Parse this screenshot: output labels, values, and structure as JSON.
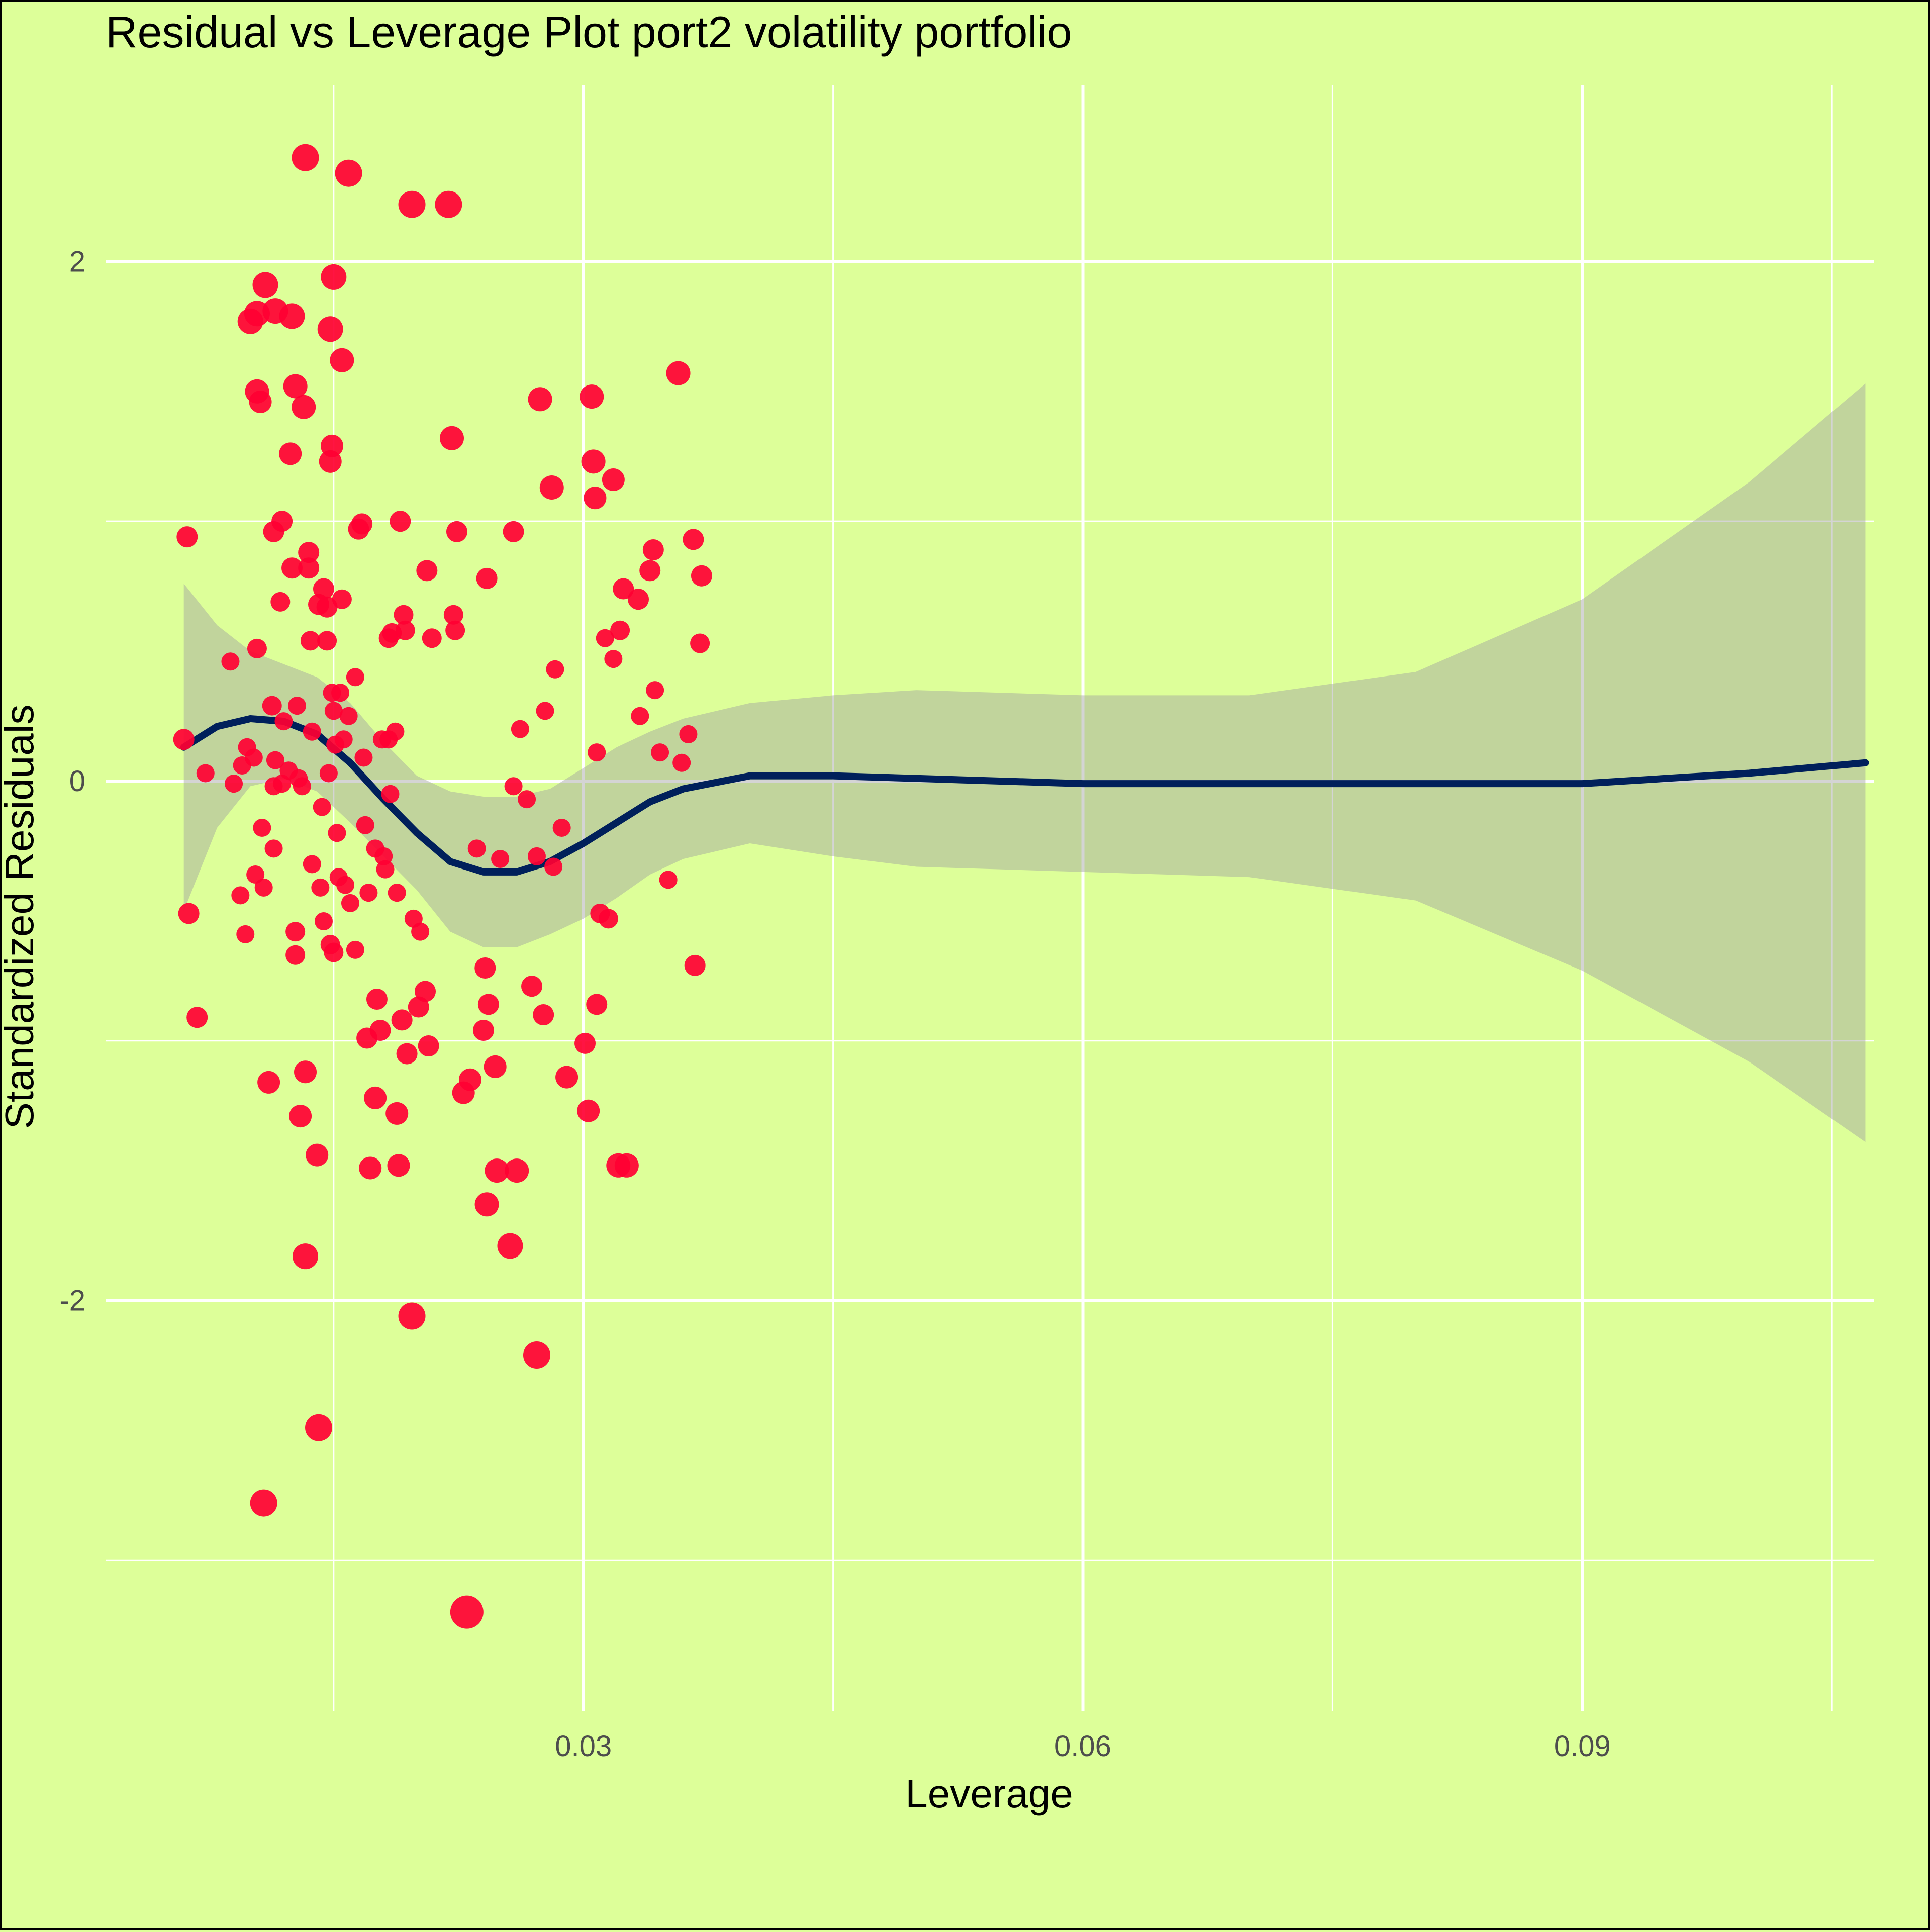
{
  "chart_data": {
    "type": "scatter",
    "title": "Residual vs Leverage Plot port2 volatility portfolio",
    "xlabel": "Leverage",
    "ylabel": "Standardized Residuals",
    "xlim": [
      0.0013,
      0.1075
    ],
    "ylim": [
      -3.58,
      2.68
    ],
    "x_ticks": [
      {
        "value": 0.03,
        "label": "0.03"
      },
      {
        "value": 0.06,
        "label": "0.06"
      },
      {
        "value": 0.09,
        "label": "0.09"
      }
    ],
    "x_minor_ticks": [
      0.015,
      0.045,
      0.075,
      0.105
    ],
    "y_ticks": [
      {
        "value": -2,
        "label": "-2"
      },
      {
        "value": 0,
        "label": "0"
      },
      {
        "value": 2,
        "label": "2"
      }
    ],
    "y_minor_ticks": [
      -3,
      -1,
      1
    ],
    "grid": true,
    "colors": {
      "background": "#ddff99",
      "grid": "#ffffff",
      "points": "#ff0033",
      "smooth_line": "#00205b",
      "confidence_band": "#a0a0a0"
    },
    "points": [
      {
        "x": 0.0062,
        "y": 0.94,
        "size": 1
      },
      {
        "x": 0.006,
        "y": 0.16,
        "size": 1
      },
      {
        "x": 0.0063,
        "y": -0.51,
        "size": 1
      },
      {
        "x": 0.0068,
        "y": -0.91,
        "size": 1
      },
      {
        "x": 0.0073,
        "y": 0.03,
        "size": 0.8
      },
      {
        "x": 0.0088,
        "y": 0.46,
        "size": 0.8
      },
      {
        "x": 0.009,
        "y": -0.01,
        "size": 0.8
      },
      {
        "x": 0.0094,
        "y": -0.44,
        "size": 0.8
      },
      {
        "x": 0.0095,
        "y": 0.06,
        "size": 0.8
      },
      {
        "x": 0.0097,
        "y": -0.59,
        "size": 0.8
      },
      {
        "x": 0.0098,
        "y": 0.13,
        "size": 0.8
      },
      {
        "x": 0.01,
        "y": 1.77,
        "size": 1.3
      },
      {
        "x": 0.0102,
        "y": 0.09,
        "size": 0.8
      },
      {
        "x": 0.0103,
        "y": -0.36,
        "size": 0.8
      },
      {
        "x": 0.0104,
        "y": 1.5,
        "size": 1.2
      },
      {
        "x": 0.0104,
        "y": 0.51,
        "size": 0.9
      },
      {
        "x": 0.0104,
        "y": 1.8,
        "size": 1.3
      },
      {
        "x": 0.0106,
        "y": 1.46,
        "size": 1.1
      },
      {
        "x": 0.0107,
        "y": -0.18,
        "size": 0.8
      },
      {
        "x": 0.0108,
        "y": -0.41,
        "size": 0.8
      },
      {
        "x": 0.0108,
        "y": -2.78,
        "size": 1.4
      },
      {
        "x": 0.0109,
        "y": 1.91,
        "size": 1.3
      },
      {
        "x": 0.0111,
        "y": -1.16,
        "size": 1.1
      },
      {
        "x": 0.0113,
        "y": 0.29,
        "size": 0.9
      },
      {
        "x": 0.0114,
        "y": 0.96,
        "size": 1
      },
      {
        "x": 0.0114,
        "y": -0.26,
        "size": 0.8
      },
      {
        "x": 0.0114,
        "y": -0.02,
        "size": 0.8
      },
      {
        "x": 0.0115,
        "y": 1.81,
        "size": 1.3
      },
      {
        "x": 0.0115,
        "y": 0.08,
        "size": 0.8
      },
      {
        "x": 0.0118,
        "y": 0.69,
        "size": 0.9
      },
      {
        "x": 0.0119,
        "y": -0.01,
        "size": 0.8
      },
      {
        "x": 0.0119,
        "y": 1.0,
        "size": 1
      },
      {
        "x": 0.012,
        "y": 0.23,
        "size": 0.8
      },
      {
        "x": 0.0123,
        "y": 0.04,
        "size": 0.8
      },
      {
        "x": 0.0124,
        "y": 1.26,
        "size": 1.1
      },
      {
        "x": 0.0125,
        "y": 0.82,
        "size": 1
      },
      {
        "x": 0.0125,
        "y": 1.79,
        "size": 1.3
      },
      {
        "x": 0.0127,
        "y": 1.52,
        "size": 1.2
      },
      {
        "x": 0.0127,
        "y": -0.67,
        "size": 0.9
      },
      {
        "x": 0.0127,
        "y": -0.58,
        "size": 0.9
      },
      {
        "x": 0.0128,
        "y": 0.29,
        "size": 0.8
      },
      {
        "x": 0.0129,
        "y": 0.01,
        "size": 0.8
      },
      {
        "x": 0.013,
        "y": -1.29,
        "size": 1.1
      },
      {
        "x": 0.0131,
        "y": -0.02,
        "size": 0.8
      },
      {
        "x": 0.0132,
        "y": 1.44,
        "size": 1.2
      },
      {
        "x": 0.0133,
        "y": -1.12,
        "size": 1.1
      },
      {
        "x": 0.0133,
        "y": -1.83,
        "size": 1.3
      },
      {
        "x": 0.0133,
        "y": 2.4,
        "size": 1.4
      },
      {
        "x": 0.0135,
        "y": 0.88,
        "size": 1
      },
      {
        "x": 0.0135,
        "y": 0.82,
        "size": 1
      },
      {
        "x": 0.0136,
        "y": 0.54,
        "size": 0.9
      },
      {
        "x": 0.0137,
        "y": 0.19,
        "size": 0.8
      },
      {
        "x": 0.0137,
        "y": -0.32,
        "size": 0.8
      },
      {
        "x": 0.014,
        "y": -1.44,
        "size": 1.1
      },
      {
        "x": 0.0141,
        "y": -2.49,
        "size": 1.4
      },
      {
        "x": 0.0141,
        "y": 0.68,
        "size": 1
      },
      {
        "x": 0.0142,
        "y": -0.41,
        "size": 0.8
      },
      {
        "x": 0.0143,
        "y": -0.1,
        "size": 0.8
      },
      {
        "x": 0.0144,
        "y": 0.74,
        "size": 1
      },
      {
        "x": 0.0144,
        "y": -0.54,
        "size": 0.8
      },
      {
        "x": 0.0146,
        "y": 0.67,
        "size": 1
      },
      {
        "x": 0.0146,
        "y": 0.54,
        "size": 0.9
      },
      {
        "x": 0.0147,
        "y": 0.03,
        "size": 0.8
      },
      {
        "x": 0.0148,
        "y": 1.74,
        "size": 1.3
      },
      {
        "x": 0.0148,
        "y": -0.63,
        "size": 0.9
      },
      {
        "x": 0.0148,
        "y": 1.23,
        "size": 1.1
      },
      {
        "x": 0.0149,
        "y": 1.29,
        "size": 1.1
      },
      {
        "x": 0.0149,
        "y": 0.34,
        "size": 0.8
      },
      {
        "x": 0.015,
        "y": 1.94,
        "size": 1.3
      },
      {
        "x": 0.015,
        "y": 0.27,
        "size": 0.8
      },
      {
        "x": 0.015,
        "y": -0.66,
        "size": 0.9
      },
      {
        "x": 0.0151,
        "y": 0.14,
        "size": 0.8
      },
      {
        "x": 0.0152,
        "y": -0.2,
        "size": 0.8
      },
      {
        "x": 0.0153,
        "y": -0.37,
        "size": 0.8
      },
      {
        "x": 0.0154,
        "y": 0.34,
        "size": 0.8
      },
      {
        "x": 0.0155,
        "y": 1.62,
        "size": 1.2
      },
      {
        "x": 0.0155,
        "y": 0.7,
        "size": 0.9
      },
      {
        "x": 0.0156,
        "y": 0.16,
        "size": 0.8
      },
      {
        "x": 0.0157,
        "y": -0.4,
        "size": 0.8
      },
      {
        "x": 0.0159,
        "y": 0.25,
        "size": 0.8
      },
      {
        "x": 0.0159,
        "y": 2.34,
        "size": 1.4
      },
      {
        "x": 0.016,
        "y": -0.47,
        "size": 0.8
      },
      {
        "x": 0.0163,
        "y": 0.4,
        "size": 0.8
      },
      {
        "x": 0.0163,
        "y": -0.65,
        "size": 0.8
      },
      {
        "x": 0.0165,
        "y": 0.97,
        "size": 1
      },
      {
        "x": 0.0167,
        "y": 0.99,
        "size": 1
      },
      {
        "x": 0.0168,
        "y": 0.09,
        "size": 0.8
      },
      {
        "x": 0.0169,
        "y": -0.17,
        "size": 0.8
      },
      {
        "x": 0.017,
        "y": -0.99,
        "size": 1
      },
      {
        "x": 0.0171,
        "y": -0.43,
        "size": 0.8
      },
      {
        "x": 0.0172,
        "y": -1.49,
        "size": 1.1
      },
      {
        "x": 0.0175,
        "y": -0.26,
        "size": 0.8
      },
      {
        "x": 0.0175,
        "y": -1.22,
        "size": 1.1
      },
      {
        "x": 0.0176,
        "y": -0.84,
        "size": 1
      },
      {
        "x": 0.0178,
        "y": -0.96,
        "size": 1
      },
      {
        "x": 0.0179,
        "y": 0.16,
        "size": 0.8
      },
      {
        "x": 0.018,
        "y": -0.29,
        "size": 0.8
      },
      {
        "x": 0.0181,
        "y": -0.34,
        "size": 0.8
      },
      {
        "x": 0.0183,
        "y": 0.16,
        "size": 0.8
      },
      {
        "x": 0.0183,
        "y": 0.55,
        "size": 0.9
      },
      {
        "x": 0.0184,
        "y": -0.05,
        "size": 0.8
      },
      {
        "x": 0.0185,
        "y": 0.57,
        "size": 0.9
      },
      {
        "x": 0.0187,
        "y": 0.19,
        "size": 0.8
      },
      {
        "x": 0.0188,
        "y": -1.28,
        "size": 1.1
      },
      {
        "x": 0.0188,
        "y": -0.43,
        "size": 0.8
      },
      {
        "x": 0.0189,
        "y": -1.48,
        "size": 1.1
      },
      {
        "x": 0.019,
        "y": 1.0,
        "size": 1
      },
      {
        "x": 0.0191,
        "y": -0.92,
        "size": 1
      },
      {
        "x": 0.0192,
        "y": 0.64,
        "size": 0.9
      },
      {
        "x": 0.0193,
        "y": 0.58,
        "size": 0.9
      },
      {
        "x": 0.0194,
        "y": -1.05,
        "size": 1
      },
      {
        "x": 0.0197,
        "y": 2.22,
        "size": 1.4
      },
      {
        "x": 0.0197,
        "y": -2.06,
        "size": 1.4
      },
      {
        "x": 0.0198,
        "y": -0.53,
        "size": 0.8
      },
      {
        "x": 0.0201,
        "y": -0.87,
        "size": 1
      },
      {
        "x": 0.0202,
        "y": -0.58,
        "size": 0.8
      },
      {
        "x": 0.0205,
        "y": -0.81,
        "size": 1
      },
      {
        "x": 0.0206,
        "y": 0.81,
        "size": 1
      },
      {
        "x": 0.0207,
        "y": -1.02,
        "size": 1
      },
      {
        "x": 0.0209,
        "y": 0.55,
        "size": 0.9
      },
      {
        "x": 0.0219,
        "y": 2.22,
        "size": 1.4
      },
      {
        "x": 0.0221,
        "y": 1.32,
        "size": 1.2
      },
      {
        "x": 0.0222,
        "y": 0.64,
        "size": 0.9
      },
      {
        "x": 0.0223,
        "y": 0.58,
        "size": 0.9
      },
      {
        "x": 0.0224,
        "y": 0.96,
        "size": 1
      },
      {
        "x": 0.0228,
        "y": -1.2,
        "size": 1.1
      },
      {
        "x": 0.023,
        "y": -3.2,
        "size": 1.8
      },
      {
        "x": 0.0232,
        "y": -1.15,
        "size": 1.1
      },
      {
        "x": 0.0236,
        "y": -0.26,
        "size": 0.8
      },
      {
        "x": 0.024,
        "y": -0.96,
        "size": 1
      },
      {
        "x": 0.0241,
        "y": -0.72,
        "size": 1
      },
      {
        "x": 0.0242,
        "y": -1.63,
        "size": 1.2
      },
      {
        "x": 0.0242,
        "y": 0.78,
        "size": 1
      },
      {
        "x": 0.0243,
        "y": -0.86,
        "size": 1
      },
      {
        "x": 0.0247,
        "y": -1.1,
        "size": 1.1
      },
      {
        "x": 0.0248,
        "y": -1.5,
        "size": 1.2
      },
      {
        "x": 0.025,
        "y": -0.3,
        "size": 0.8
      },
      {
        "x": 0.0256,
        "y": -1.79,
        "size": 1.3
      },
      {
        "x": 0.0258,
        "y": -0.02,
        "size": 0.8
      },
      {
        "x": 0.0258,
        "y": 0.96,
        "size": 1
      },
      {
        "x": 0.026,
        "y": -1.5,
        "size": 1.2
      },
      {
        "x": 0.0262,
        "y": 0.2,
        "size": 0.8
      },
      {
        "x": 0.0266,
        "y": -0.07,
        "size": 0.8
      },
      {
        "x": 0.0269,
        "y": -0.79,
        "size": 1
      },
      {
        "x": 0.0272,
        "y": -0.29,
        "size": 0.8
      },
      {
        "x": 0.0272,
        "y": -2.21,
        "size": 1.4
      },
      {
        "x": 0.0274,
        "y": 1.47,
        "size": 1.2
      },
      {
        "x": 0.0276,
        "y": -0.9,
        "size": 1
      },
      {
        "x": 0.0277,
        "y": 0.27,
        "size": 0.8
      },
      {
        "x": 0.0281,
        "y": 1.13,
        "size": 1.2
      },
      {
        "x": 0.0282,
        "y": -0.33,
        "size": 0.8
      },
      {
        "x": 0.0283,
        "y": 0.43,
        "size": 0.8
      },
      {
        "x": 0.0287,
        "y": -0.18,
        "size": 0.8
      },
      {
        "x": 0.029,
        "y": -1.14,
        "size": 1.1
      },
      {
        "x": 0.0301,
        "y": -1.01,
        "size": 1
      },
      {
        "x": 0.0303,
        "y": -1.27,
        "size": 1.1
      },
      {
        "x": 0.0305,
        "y": 1.48,
        "size": 1.2
      },
      {
        "x": 0.0306,
        "y": 1.23,
        "size": 1.2
      },
      {
        "x": 0.0307,
        "y": 1.09,
        "size": 1.1
      },
      {
        "x": 0.0308,
        "y": -0.86,
        "size": 1
      },
      {
        "x": 0.0308,
        "y": 0.11,
        "size": 0.8
      },
      {
        "x": 0.031,
        "y": -0.51,
        "size": 0.9
      },
      {
        "x": 0.0313,
        "y": 0.55,
        "size": 0.8
      },
      {
        "x": 0.0315,
        "y": -0.53,
        "size": 0.9
      },
      {
        "x": 0.0318,
        "y": 0.47,
        "size": 0.8
      },
      {
        "x": 0.0318,
        "y": 1.16,
        "size": 1.1
      },
      {
        "x": 0.0321,
        "y": -1.48,
        "size": 1.2
      },
      {
        "x": 0.0322,
        "y": 0.58,
        "size": 0.9
      },
      {
        "x": 0.0324,
        "y": 0.74,
        "size": 1
      },
      {
        "x": 0.0326,
        "y": -1.48,
        "size": 1.2
      },
      {
        "x": 0.0333,
        "y": 0.7,
        "size": 1
      },
      {
        "x": 0.0334,
        "y": 0.25,
        "size": 0.8
      },
      {
        "x": 0.034,
        "y": 0.81,
        "size": 1
      },
      {
        "x": 0.0342,
        "y": 0.89,
        "size": 1
      },
      {
        "x": 0.0343,
        "y": 0.35,
        "size": 0.8
      },
      {
        "x": 0.0346,
        "y": 0.11,
        "size": 0.8
      },
      {
        "x": 0.0351,
        "y": -0.38,
        "size": 0.8
      },
      {
        "x": 0.0357,
        "y": 1.57,
        "size": 1.2
      },
      {
        "x": 0.0359,
        "y": 0.07,
        "size": 0.8
      },
      {
        "x": 0.0363,
        "y": 0.18,
        "size": 0.8
      },
      {
        "x": 0.0366,
        "y": 0.93,
        "size": 1
      },
      {
        "x": 0.0367,
        "y": -0.71,
        "size": 1
      },
      {
        "x": 0.037,
        "y": 0.53,
        "size": 0.9
      },
      {
        "x": 0.0371,
        "y": 0.79,
        "size": 1
      }
    ],
    "smooth_line": [
      {
        "x": 0.006,
        "y": 0.13
      },
      {
        "x": 0.008,
        "y": 0.21
      },
      {
        "x": 0.01,
        "y": 0.24
      },
      {
        "x": 0.012,
        "y": 0.23
      },
      {
        "x": 0.014,
        "y": 0.18
      },
      {
        "x": 0.016,
        "y": 0.07
      },
      {
        "x": 0.018,
        "y": -0.07
      },
      {
        "x": 0.02,
        "y": -0.2
      },
      {
        "x": 0.022,
        "y": -0.31
      },
      {
        "x": 0.024,
        "y": -0.35
      },
      {
        "x": 0.026,
        "y": -0.35
      },
      {
        "x": 0.028,
        "y": -0.31
      },
      {
        "x": 0.03,
        "y": -0.24
      },
      {
        "x": 0.032,
        "y": -0.16
      },
      {
        "x": 0.034,
        "y": -0.08
      },
      {
        "x": 0.036,
        "y": -0.03
      },
      {
        "x": 0.04,
        "y": 0.02
      },
      {
        "x": 0.045,
        "y": 0.02
      },
      {
        "x": 0.05,
        "y": 0.01
      },
      {
        "x": 0.06,
        "y": -0.01
      },
      {
        "x": 0.07,
        "y": -0.01
      },
      {
        "x": 0.08,
        "y": -0.01
      },
      {
        "x": 0.09,
        "y": -0.01
      },
      {
        "x": 0.1,
        "y": 0.03
      },
      {
        "x": 0.107,
        "y": 0.07
      }
    ],
    "band_upper": [
      {
        "x": 0.006,
        "y": 0.76
      },
      {
        "x": 0.008,
        "y": 0.6
      },
      {
        "x": 0.01,
        "y": 0.5
      },
      {
        "x": 0.012,
        "y": 0.45
      },
      {
        "x": 0.014,
        "y": 0.4
      },
      {
        "x": 0.016,
        "y": 0.3
      },
      {
        "x": 0.018,
        "y": 0.15
      },
      {
        "x": 0.02,
        "y": 0.02
      },
      {
        "x": 0.022,
        "y": -0.04
      },
      {
        "x": 0.024,
        "y": -0.06
      },
      {
        "x": 0.026,
        "y": -0.06
      },
      {
        "x": 0.028,
        "y": -0.03
      },
      {
        "x": 0.03,
        "y": 0.05
      },
      {
        "x": 0.032,
        "y": 0.13
      },
      {
        "x": 0.034,
        "y": 0.19
      },
      {
        "x": 0.036,
        "y": 0.24
      },
      {
        "x": 0.04,
        "y": 0.3
      },
      {
        "x": 0.045,
        "y": 0.33
      },
      {
        "x": 0.05,
        "y": 0.35
      },
      {
        "x": 0.06,
        "y": 0.33
      },
      {
        "x": 0.07,
        "y": 0.33
      },
      {
        "x": 0.08,
        "y": 0.42
      },
      {
        "x": 0.09,
        "y": 0.7
      },
      {
        "x": 0.1,
        "y": 1.15
      },
      {
        "x": 0.107,
        "y": 1.53
      }
    ],
    "band_lower": [
      {
        "x": 0.006,
        "y": -0.5
      },
      {
        "x": 0.008,
        "y": -0.18
      },
      {
        "x": 0.01,
        "y": -0.02
      },
      {
        "x": 0.012,
        "y": 0.01
      },
      {
        "x": 0.014,
        "y": -0.04
      },
      {
        "x": 0.016,
        "y": -0.16
      },
      {
        "x": 0.018,
        "y": -0.29
      },
      {
        "x": 0.02,
        "y": -0.42
      },
      {
        "x": 0.022,
        "y": -0.58
      },
      {
        "x": 0.024,
        "y": -0.64
      },
      {
        "x": 0.026,
        "y": -0.64
      },
      {
        "x": 0.028,
        "y": -0.59
      },
      {
        "x": 0.03,
        "y": -0.53
      },
      {
        "x": 0.032,
        "y": -0.45
      },
      {
        "x": 0.034,
        "y": -0.36
      },
      {
        "x": 0.036,
        "y": -0.3
      },
      {
        "x": 0.04,
        "y": -0.24
      },
      {
        "x": 0.045,
        "y": -0.29
      },
      {
        "x": 0.05,
        "y": -0.33
      },
      {
        "x": 0.06,
        "y": -0.35
      },
      {
        "x": 0.07,
        "y": -0.37
      },
      {
        "x": 0.08,
        "y": -0.46
      },
      {
        "x": 0.09,
        "y": -0.73
      },
      {
        "x": 0.1,
        "y": -1.08
      },
      {
        "x": 0.107,
        "y": -1.39
      }
    ]
  }
}
